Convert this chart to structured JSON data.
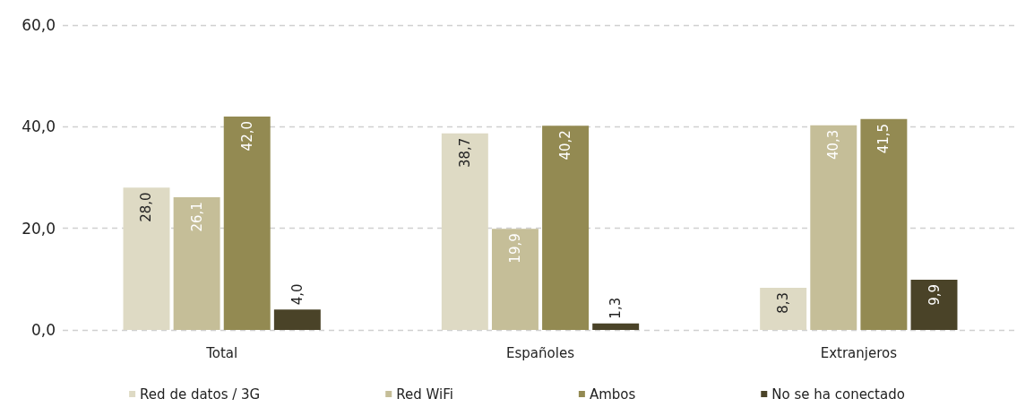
{
  "chart_data": {
    "type": "bar",
    "categories": [
      "Total",
      "Españoles",
      "Extranjeros"
    ],
    "series": [
      {
        "name": "Red de datos / 3G",
        "color": "#dedac4",
        "values": [
          28.0,
          38.7,
          8.3
        ],
        "value_labels": [
          "28,0",
          "38,7",
          "8,3"
        ]
      },
      {
        "name": "Red WiFi",
        "color": "#c5be98",
        "values": [
          26.1,
          19.9,
          40.3
        ],
        "value_labels": [
          "26,1",
          "19,9",
          "40,3"
        ]
      },
      {
        "name": "Ambos",
        "color": "#938a52",
        "values": [
          42.0,
          40.2,
          41.5
        ],
        "value_labels": [
          "42,0",
          "40,2",
          "41,5"
        ]
      },
      {
        "name": "No se ha conectado",
        "color": "#4a4328",
        "values": [
          4.0,
          1.3,
          9.9
        ],
        "value_labels": [
          "4,0",
          "1,3",
          "9,9"
        ]
      }
    ],
    "ylim": [
      0,
      60
    ],
    "yticks": [
      {
        "value": 0,
        "label": "0,0"
      },
      {
        "value": 20,
        "label": "20,0"
      },
      {
        "value": 40,
        "label": "40,0"
      },
      {
        "value": 60,
        "label": "60,0"
      }
    ],
    "grid": "y",
    "legend": "bottom"
  }
}
